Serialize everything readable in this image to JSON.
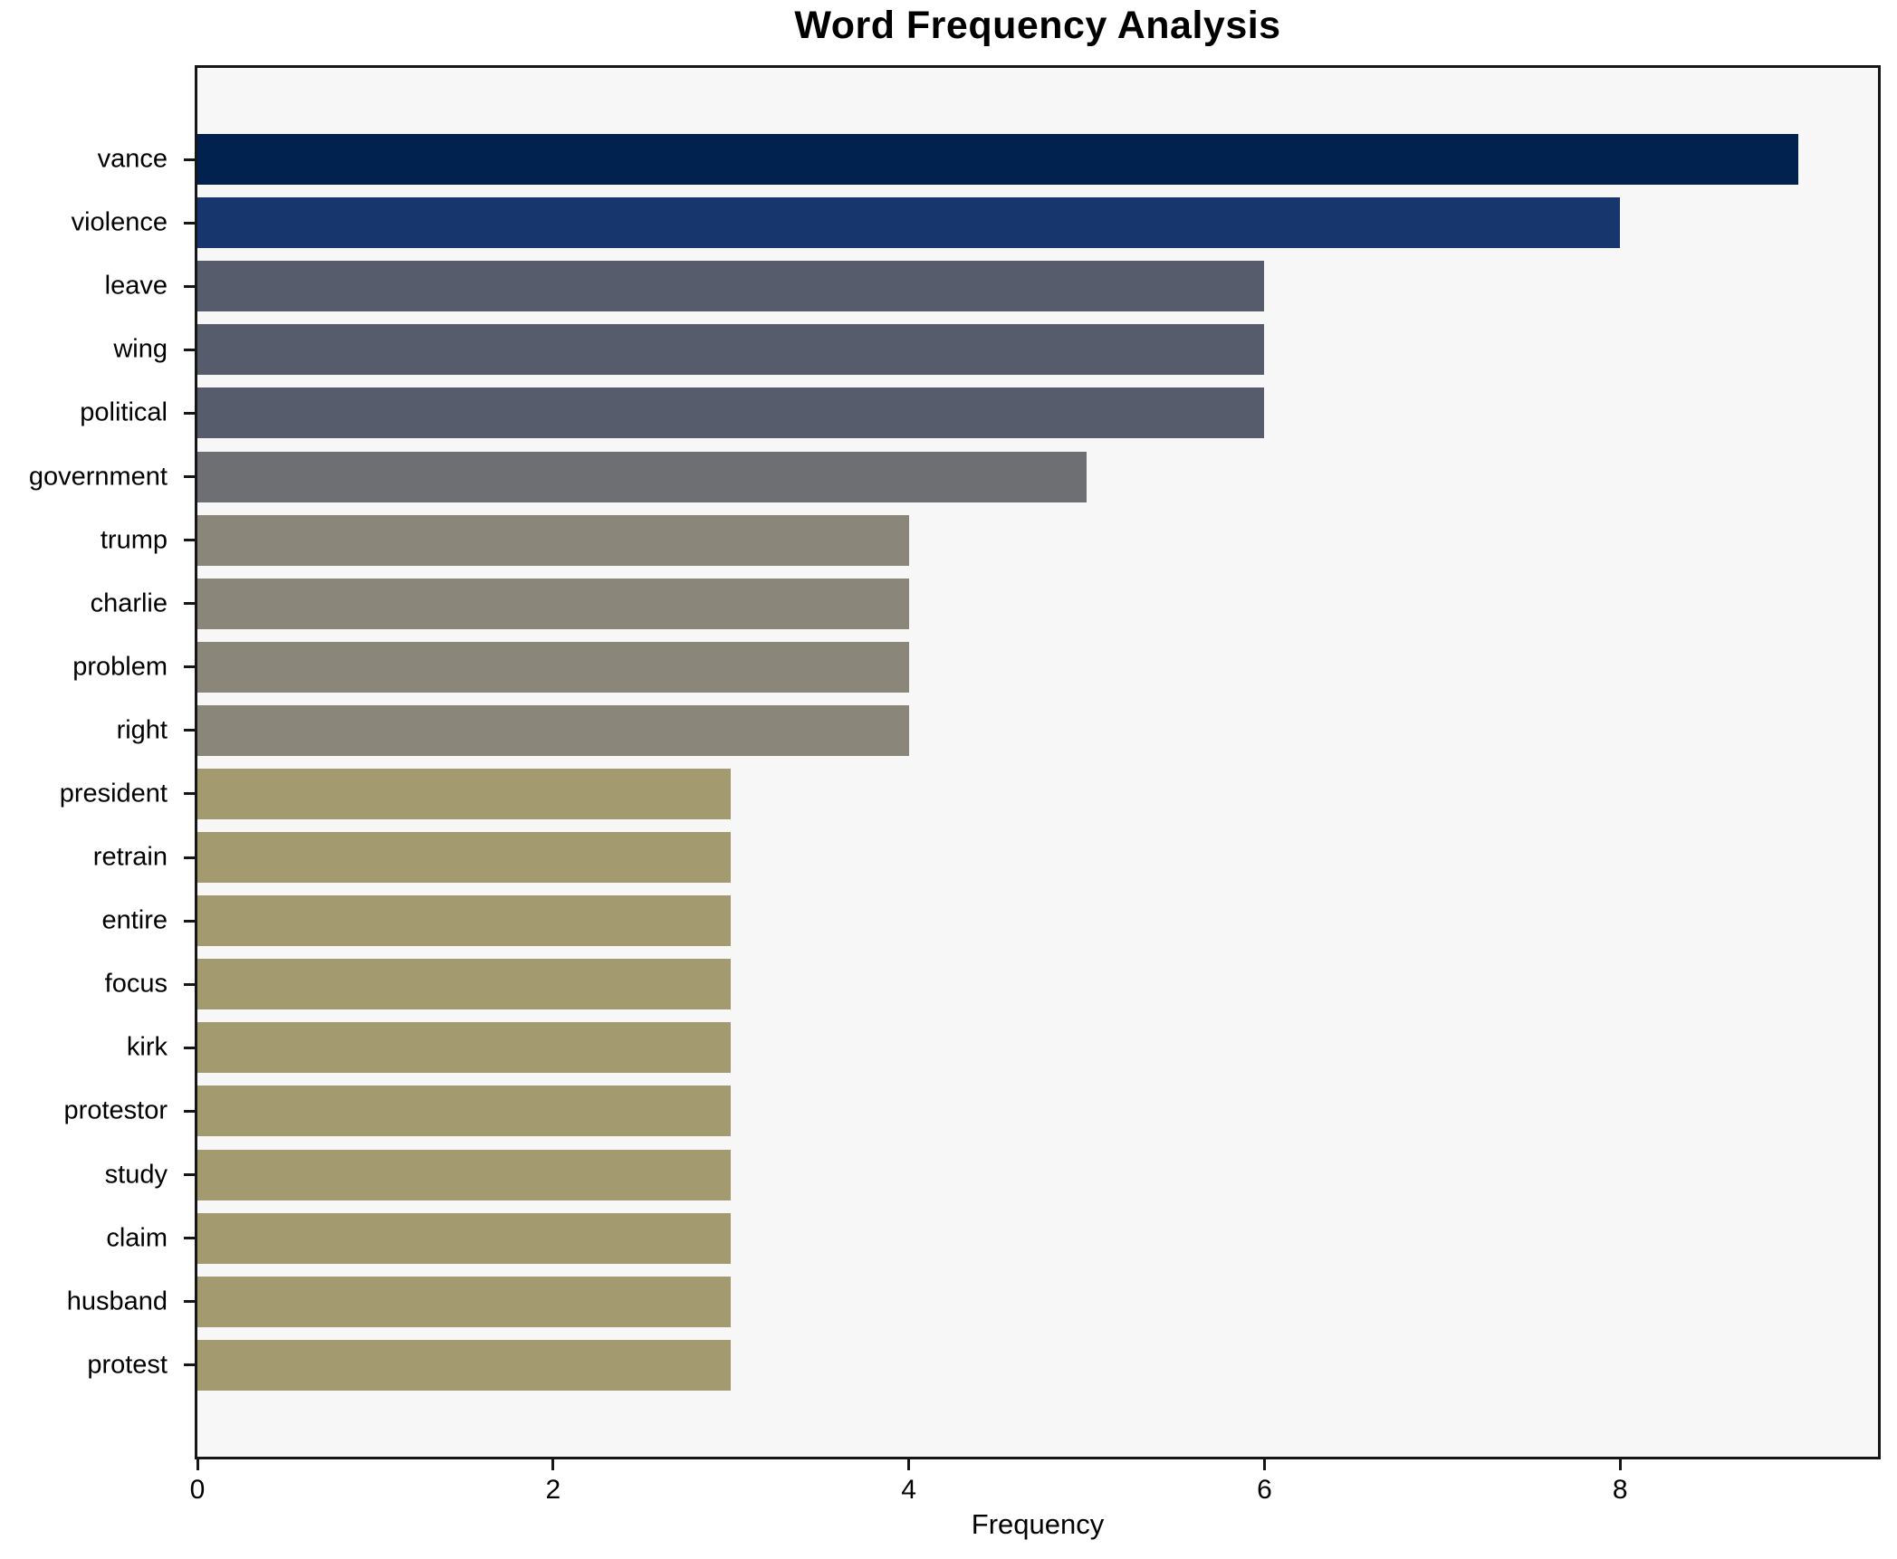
{
  "title": "Word Frequency Analysis",
  "chart_data": {
    "type": "bar",
    "orientation": "horizontal",
    "title": "Word Frequency Analysis",
    "xlabel": "Frequency",
    "ylabel": "",
    "categories": [
      "vance",
      "violence",
      "leave",
      "wing",
      "political",
      "government",
      "trump",
      "charlie",
      "problem",
      "right",
      "president",
      "retrain",
      "entire",
      "focus",
      "kirk",
      "protestor",
      "study",
      "claim",
      "husband",
      "protest"
    ],
    "values": [
      9,
      8,
      6,
      6,
      6,
      5,
      4,
      4,
      4,
      4,
      3,
      3,
      3,
      3,
      3,
      3,
      3,
      3,
      3,
      3
    ],
    "bar_colors": [
      "#01224e",
      "#17366e",
      "#575c6c",
      "#575c6c",
      "#575c6c",
      "#6e6f73",
      "#8a8679",
      "#8a8679",
      "#8a8679",
      "#8a8679",
      "#a49a70",
      "#a49a70",
      "#a49a70",
      "#a49a70",
      "#a49a70",
      "#a49a70",
      "#a49a70",
      "#a49a70",
      "#a49a70",
      "#a49a70"
    ],
    "xticks": [
      0,
      2,
      4,
      6,
      8
    ],
    "xlim": [
      0,
      9.45
    ],
    "grid": false,
    "legend": false,
    "plot_bg": "#f7f7f8",
    "figure_bg": "#ffffff",
    "spine_color": "#161616"
  }
}
